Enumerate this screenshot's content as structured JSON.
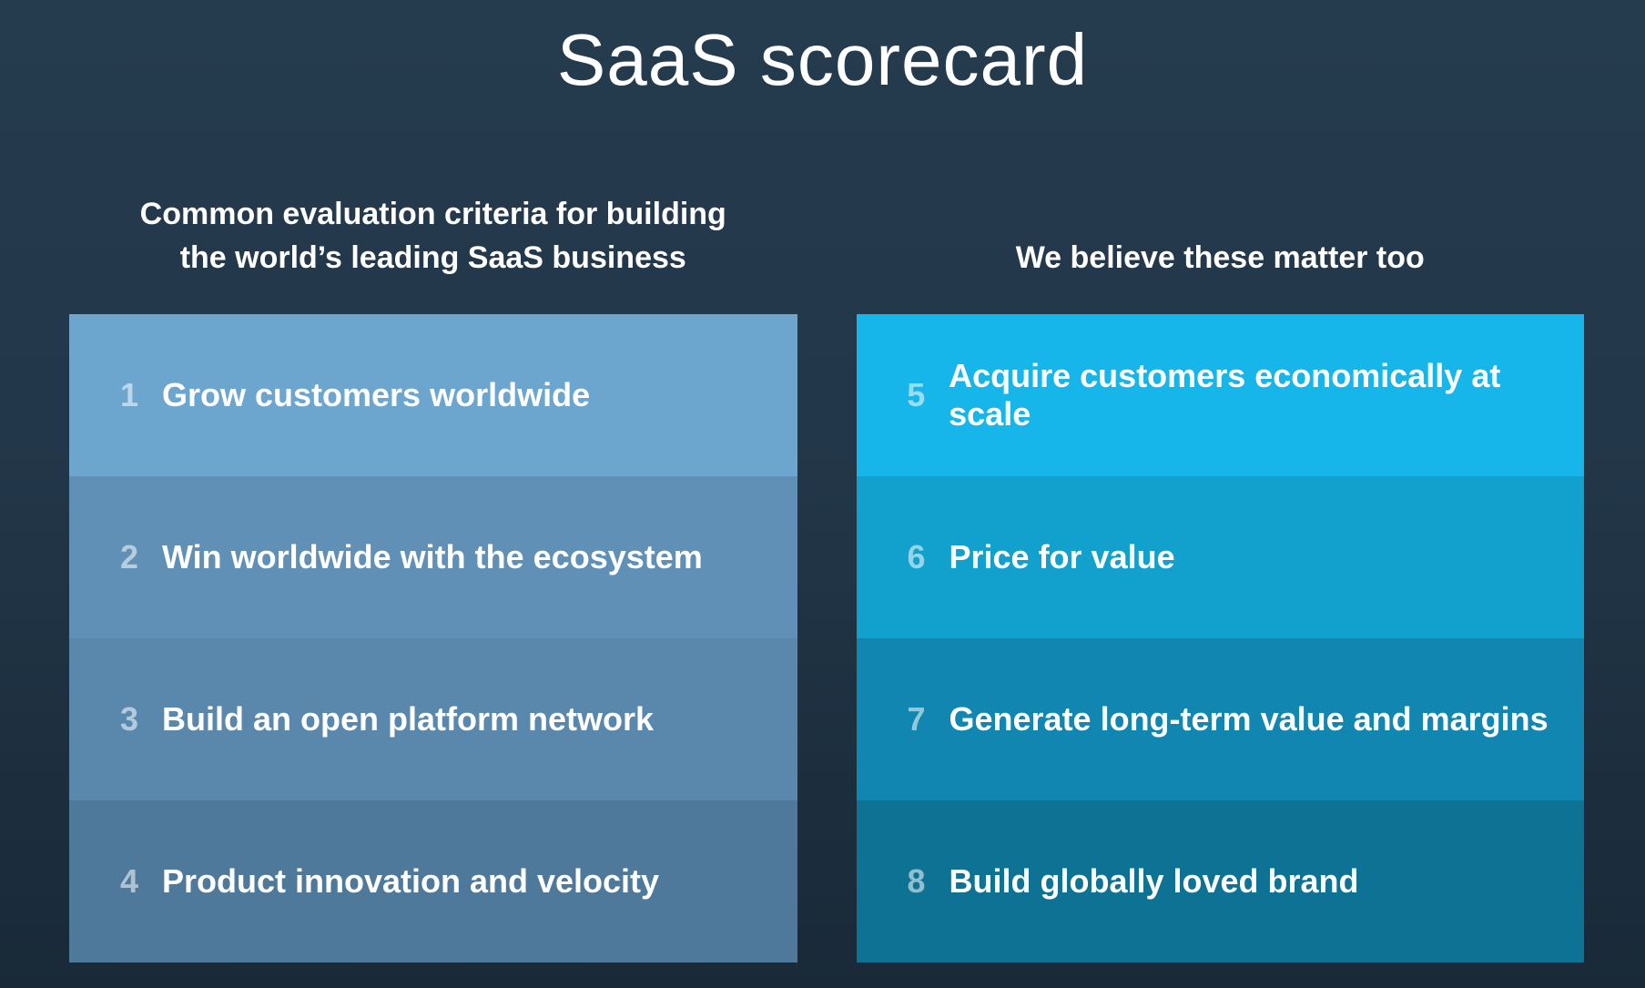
{
  "title": "SaaS scorecard",
  "colors": {
    "background_top": "#253c4e",
    "background_bottom": "#192938",
    "text": "#ffffff",
    "number_tint": "rgba(255,255,255,0.55)"
  },
  "columns": [
    {
      "id": "common-criteria",
      "header_lines": [
        "Common evaluation criteria for building",
        "the world’s leading SaaS business"
      ],
      "items": [
        {
          "number": "1",
          "label": "Grow customers worldwide",
          "bg": "#6ca6cf"
        },
        {
          "number": "2",
          "label": "Win worldwide with the ecosystem",
          "bg": "#6090b6"
        },
        {
          "number": "3",
          "label": "Build an open platform network",
          "bg": "#5a88ac"
        },
        {
          "number": "4",
          "label": "Product innovation and velocity",
          "bg": "#4f799a"
        }
      ]
    },
    {
      "id": "we-believe-these-matter",
      "header_lines": [
        "We believe these matter too"
      ],
      "items": [
        {
          "number": "5",
          "label": "Acquire customers economically at scale",
          "bg": "#17b6ea"
        },
        {
          "number": "6",
          "label": "Price for value",
          "bg": "#12a0cd"
        },
        {
          "number": "7",
          "label": "Generate long-term value and margins",
          "bg": "#1186b0"
        },
        {
          "number": "8",
          "label": "Build globally loved brand",
          "bg": "#0d7294"
        }
      ]
    }
  ]
}
